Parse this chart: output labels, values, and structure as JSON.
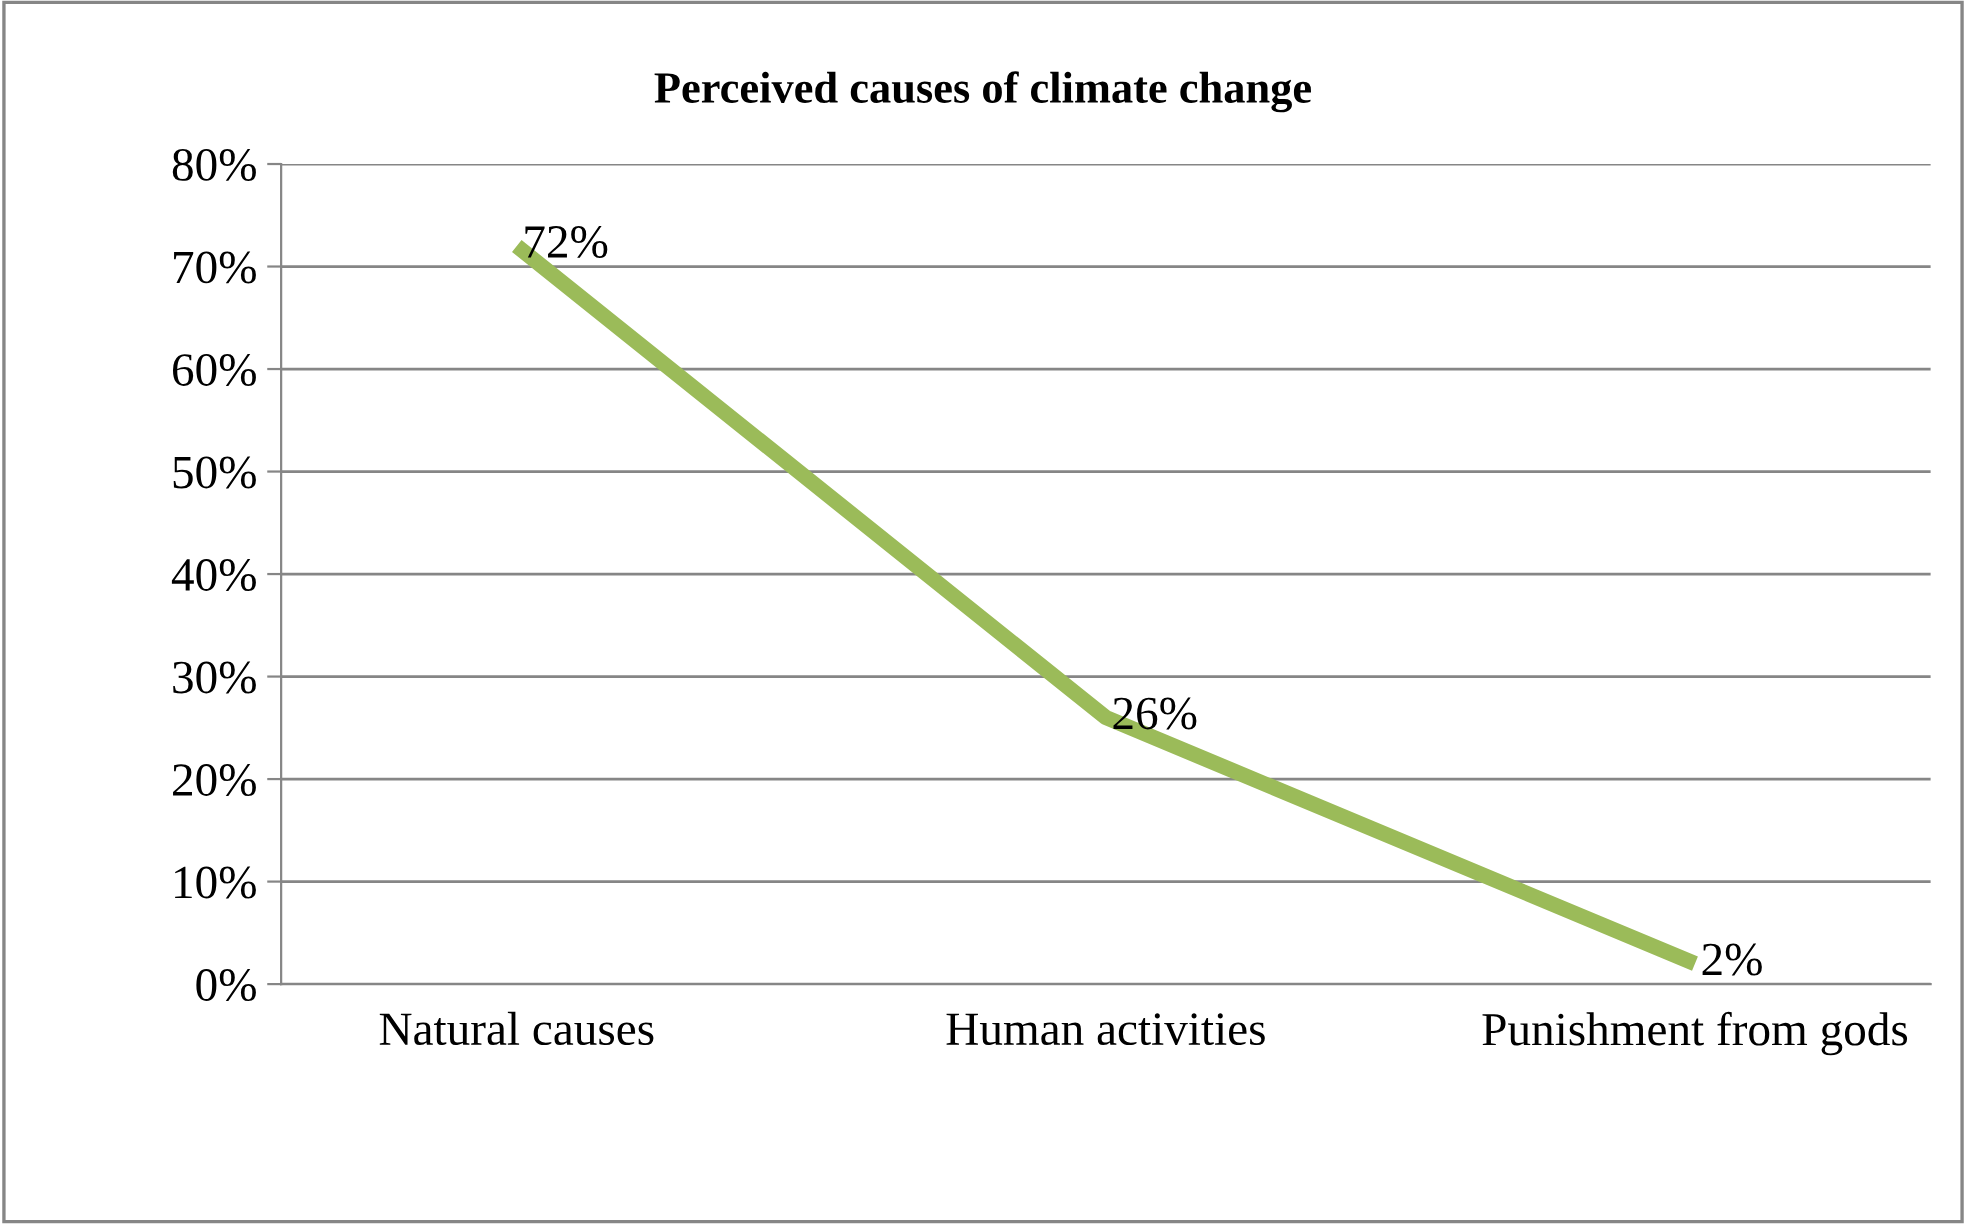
{
  "chart_data": {
    "type": "line",
    "title": "Perceived causes of climate change",
    "categories": [
      "Natural causes",
      "Human activities",
      "Punishment from gods"
    ],
    "series": [
      {
        "color": "#9bbb59",
        "values": [
          72,
          26,
          2
        ],
        "value_labels": [
          "72%",
          "26%",
          "2%"
        ]
      }
    ],
    "ylim": [
      0,
      80
    ],
    "yticks": [
      {
        "value": 0,
        "label": "0%"
      },
      {
        "value": 10,
        "label": "10%"
      },
      {
        "value": 20,
        "label": "20%"
      },
      {
        "value": 30,
        "label": "30%"
      },
      {
        "value": 40,
        "label": "40%"
      },
      {
        "value": 50,
        "label": "50%"
      },
      {
        "value": 60,
        "label": "60%"
      },
      {
        "value": 70,
        "label": "70%"
      },
      {
        "value": 80,
        "label": "80%"
      }
    ],
    "grid": "y",
    "legend": false,
    "marker": "none",
    "line_style": "solid"
  }
}
